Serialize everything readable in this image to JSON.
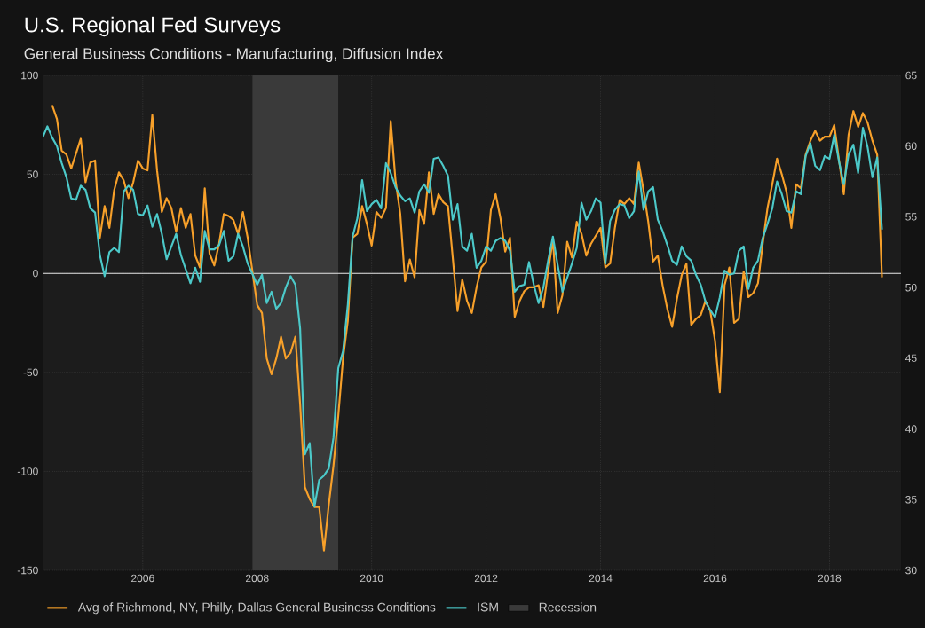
{
  "chart_data": {
    "type": "line",
    "title": "U.S. Regional Fed Surveys",
    "subtitle": "General Business Conditions - Manufacturing, Diffusion Index",
    "xlim": [
      "2004-04",
      "2019-04"
    ],
    "xticks": [
      "2006",
      "2008",
      "2010",
      "2012",
      "2014",
      "2016",
      "2018"
    ],
    "ylim": [
      -150,
      100
    ],
    "yticks": [
      -150,
      -100,
      -50,
      0,
      50,
      100
    ],
    "y2lim": [
      30,
      65
    ],
    "y2ticks": [
      30,
      35,
      40,
      45,
      50,
      55,
      60,
      65
    ],
    "grid": true,
    "legend": "bottom",
    "ref_lines": [
      {
        "axis": "y",
        "value": 0,
        "color": "#e6e6e6"
      }
    ],
    "bands": [
      {
        "axis": "x",
        "from": "2007-12",
        "to": "2009-06",
        "label": "Recession",
        "color": "#3a3a3a"
      }
    ],
    "series": [
      {
        "name": "Avg of Richmond, NY, Philly, Dallas General Business Conditions",
        "color": "#f7a02a",
        "axis": "y",
        "x": [
          "2004-06",
          "2004-07",
          "2004-08",
          "2004-09",
          "2004-10",
          "2004-12",
          "2005-01",
          "2005-02",
          "2005-03",
          "2005-04",
          "2005-05",
          "2005-06",
          "2005-07",
          "2005-08",
          "2005-09",
          "2005-10",
          "2005-11",
          "2005-12",
          "2006-01",
          "2006-02",
          "2006-03",
          "2006-04",
          "2006-05",
          "2006-06",
          "2006-07",
          "2006-08",
          "2006-09",
          "2006-10",
          "2006-11",
          "2006-12",
          "2007-01",
          "2007-02",
          "2007-03",
          "2007-04",
          "2007-05",
          "2007-06",
          "2007-07",
          "2007-08",
          "2007-09",
          "2007-10",
          "2007-11",
          "2008-01",
          "2008-02",
          "2008-03",
          "2008-04",
          "2008-05",
          "2008-06",
          "2008-07",
          "2008-08",
          "2008-09",
          "2008-10",
          "2008-11",
          "2008-12",
          "2009-01",
          "2009-02",
          "2009-03",
          "2009-04",
          "2009-05",
          "2009-06",
          "2009-07",
          "2009-08",
          "2009-09",
          "2009-10",
          "2009-11",
          "2009-12",
          "2010-01",
          "2010-02",
          "2010-03",
          "2010-04",
          "2010-05",
          "2010-06",
          "2010-07",
          "2010-08",
          "2010-09",
          "2010-10",
          "2010-11",
          "2010-12",
          "2011-01",
          "2011-02",
          "2011-03",
          "2011-04",
          "2011-05",
          "2011-06",
          "2011-07",
          "2011-08",
          "2011-09",
          "2011-10",
          "2011-11",
          "2011-12",
          "2012-01",
          "2012-02",
          "2012-03",
          "2012-04",
          "2012-05",
          "2012-06",
          "2012-07",
          "2012-08",
          "2012-09",
          "2012-10",
          "2012-11",
          "2012-12",
          "2013-01",
          "2013-02",
          "2013-03",
          "2013-04",
          "2013-05",
          "2013-06",
          "2013-07",
          "2013-08",
          "2013-09",
          "2013-10",
          "2013-11",
          "2013-12",
          "2014-01",
          "2014-02",
          "2014-03",
          "2014-04",
          "2014-05",
          "2014-06",
          "2014-07",
          "2014-08",
          "2014-09",
          "2014-10",
          "2014-11",
          "2014-12",
          "2015-01",
          "2015-02",
          "2015-03",
          "2015-04",
          "2015-05",
          "2015-06",
          "2015-07",
          "2015-08",
          "2015-09",
          "2015-10",
          "2015-11",
          "2015-12",
          "2016-01",
          "2016-02",
          "2016-03",
          "2016-04",
          "2016-05",
          "2016-06",
          "2016-07",
          "2016-08",
          "2016-09",
          "2016-10",
          "2016-11",
          "2016-12",
          "2017-01",
          "2017-02",
          "2017-03",
          "2017-04",
          "2017-05",
          "2017-06",
          "2017-07",
          "2017-08",
          "2017-09",
          "2017-10",
          "2017-11",
          "2017-12",
          "2018-01",
          "2018-02",
          "2018-03",
          "2018-04",
          "2018-05",
          "2018-06",
          "2018-07",
          "2018-08",
          "2018-09",
          "2018-10",
          "2018-11",
          "2018-12"
        ],
        "values": [
          85,
          78,
          62,
          60,
          53,
          68,
          46,
          56,
          57,
          18,
          34,
          23,
          42,
          51,
          47,
          38,
          46,
          57,
          53,
          52,
          80,
          52,
          31,
          38,
          33,
          21,
          33,
          23,
          30,
          9,
          3,
          43,
          10,
          4,
          15,
          30,
          29,
          27,
          20,
          31,
          18,
          -16,
          -20,
          -43,
          -51,
          -43,
          -32,
          -43,
          -40,
          -32,
          -66,
          -108,
          -114,
          -118,
          -118,
          -140,
          -117,
          -97,
          -72,
          -43,
          -24,
          18,
          20,
          34,
          25,
          14,
          31,
          28,
          33,
          77,
          47,
          30,
          -4,
          7,
          -2,
          32,
          25,
          51,
          30,
          40,
          36,
          34,
          8,
          -19,
          -3,
          -14,
          -20,
          -7,
          3,
          6,
          32,
          40,
          28,
          11,
          18,
          -22,
          -14,
          -9,
          -7,
          -7,
          -6,
          -17,
          1,
          17,
          -20,
          -11,
          16,
          8,
          26,
          20,
          9,
          15,
          19,
          23,
          3,
          5,
          23,
          37,
          35,
          38,
          35,
          56,
          42,
          26,
          6,
          9,
          -6,
          -18,
          -27,
          -13,
          -1,
          5,
          -26,
          -23,
          -21,
          -14,
          -19,
          -34,
          -60,
          -6,
          3,
          -25,
          -23,
          1,
          -12,
          -10,
          -5,
          15,
          33,
          45,
          58,
          50,
          41,
          23,
          45,
          43,
          60,
          67,
          72,
          67,
          69,
          69,
          75,
          57,
          40,
          70,
          82,
          74,
          81,
          76,
          67,
          60,
          -2
        ]
      },
      {
        "name": "ISM",
        "color": "#4cc9c9",
        "axis": "y2",
        "x": [
          "2004-04",
          "2004-05",
          "2004-06",
          "2004-07",
          "2004-08",
          "2004-09",
          "2004-10",
          "2004-11",
          "2004-12",
          "2005-01",
          "2005-02",
          "2005-03",
          "2005-04",
          "2005-05",
          "2005-06",
          "2005-07",
          "2005-08",
          "2005-09",
          "2005-10",
          "2005-11",
          "2005-12",
          "2006-01",
          "2006-02",
          "2006-03",
          "2006-04",
          "2006-05",
          "2006-06",
          "2006-07",
          "2006-08",
          "2006-09",
          "2006-10",
          "2006-11",
          "2006-12",
          "2007-01",
          "2007-02",
          "2007-03",
          "2007-04",
          "2007-05",
          "2007-06",
          "2007-07",
          "2007-08",
          "2007-09",
          "2007-10",
          "2007-11",
          "2008-01",
          "2008-02",
          "2008-03",
          "2008-04",
          "2008-05",
          "2008-06",
          "2008-07",
          "2008-08",
          "2008-09",
          "2008-10",
          "2008-11",
          "2008-12",
          "2009-01",
          "2009-02",
          "2009-03",
          "2009-04",
          "2009-05",
          "2009-06",
          "2009-07",
          "2009-08",
          "2009-09",
          "2009-10",
          "2009-11",
          "2009-12",
          "2010-01",
          "2010-02",
          "2010-03",
          "2010-04",
          "2010-05",
          "2010-06",
          "2010-07",
          "2010-08",
          "2010-09",
          "2010-10",
          "2010-11",
          "2010-12",
          "2011-01",
          "2011-02",
          "2011-03",
          "2011-04",
          "2011-05",
          "2011-06",
          "2011-07",
          "2011-08",
          "2011-09",
          "2011-10",
          "2011-11",
          "2011-12",
          "2012-01",
          "2012-02",
          "2012-03",
          "2012-04",
          "2012-05",
          "2012-06",
          "2012-07",
          "2012-08",
          "2012-09",
          "2012-10",
          "2012-11",
          "2012-12",
          "2013-01",
          "2013-02",
          "2013-03",
          "2013-04",
          "2013-05",
          "2013-06",
          "2013-07",
          "2013-08",
          "2013-09",
          "2013-10",
          "2013-11",
          "2013-12",
          "2014-01",
          "2014-02",
          "2014-03",
          "2014-04",
          "2014-05",
          "2014-06",
          "2014-07",
          "2014-08",
          "2014-09",
          "2014-10",
          "2014-11",
          "2014-12",
          "2015-01",
          "2015-02",
          "2015-03",
          "2015-04",
          "2015-05",
          "2015-06",
          "2015-07",
          "2015-08",
          "2015-09",
          "2015-10",
          "2015-11",
          "2015-12",
          "2016-01",
          "2016-02",
          "2016-03",
          "2016-04",
          "2016-05",
          "2016-06",
          "2016-07",
          "2016-08",
          "2016-09",
          "2016-10",
          "2016-11",
          "2016-12",
          "2017-01",
          "2017-02",
          "2017-03",
          "2017-04",
          "2017-05",
          "2017-06",
          "2017-07",
          "2017-08",
          "2017-09",
          "2017-10",
          "2017-11",
          "2017-12",
          "2018-01",
          "2018-02",
          "2018-03",
          "2018-04",
          "2018-05",
          "2018-06",
          "2018-07",
          "2018-08",
          "2018-09",
          "2018-10",
          "2018-11",
          "2018-12"
        ],
        "values": [
          60.6,
          61.4,
          60.6,
          60.0,
          58.8,
          57.8,
          56.3,
          56.2,
          57.2,
          56.9,
          55.6,
          55.3,
          52.3,
          50.8,
          52.5,
          52.8,
          52.5,
          56.8,
          57.2,
          56.9,
          55.2,
          55.1,
          55.8,
          54.3,
          55.2,
          53.8,
          52.0,
          52.9,
          53.8,
          52.3,
          51.3,
          50.3,
          51.4,
          50.4,
          54.0,
          52.7,
          52.7,
          53.0,
          54.0,
          51.9,
          52.2,
          53.8,
          52.9,
          51.7,
          50.2,
          50.9,
          48.9,
          49.7,
          48.5,
          48.9,
          50.0,
          50.8,
          50.2,
          47.1,
          38.2,
          39.0,
          34.5,
          36.4,
          36.7,
          37.2,
          39.4,
          44.3,
          45.5,
          48.8,
          53.6,
          54.9,
          57.6,
          55.4,
          55.9,
          56.2,
          55.6,
          58.8,
          58.1,
          57.1,
          56.5,
          56.1,
          56.3,
          55.3,
          56.8,
          57.3,
          56.7,
          59.1,
          59.2,
          58.6,
          57.9,
          54.8,
          55.9,
          52.9,
          52.6,
          53.8,
          51.4,
          51.9,
          52.9,
          52.6,
          53.3,
          53.5,
          53.3,
          52.6,
          49.7,
          50.1,
          50.2,
          51.8,
          50.2,
          48.9,
          50.0,
          51.9,
          53.6,
          51.6,
          49.7,
          50.7,
          51.7,
          52.8,
          56.0,
          54.8,
          55.4,
          56.3,
          56.0,
          51.7,
          54.7,
          55.5,
          55.9,
          55.8,
          54.9,
          55.4,
          58.2,
          55.5,
          56.8,
          57.1,
          54.8,
          54.0,
          53.0,
          51.9,
          51.6,
          52.9,
          52.2,
          51.9,
          50.9,
          50.2,
          49.0,
          48.4,
          47.9,
          49.3,
          51.2,
          50.9,
          51.0,
          52.6,
          52.9,
          49.9,
          51.4,
          51.9,
          53.5,
          54.5,
          55.6,
          57.5,
          56.6,
          55.4,
          55.3,
          56.8,
          56.6,
          59.3,
          60.2,
          58.6,
          58.3,
          59.3,
          59.1,
          60.8,
          58.9,
          57.3,
          59.4,
          60.1,
          58.1,
          61.3,
          59.9,
          57.8,
          59.2,
          54.1
        ]
      }
    ]
  }
}
